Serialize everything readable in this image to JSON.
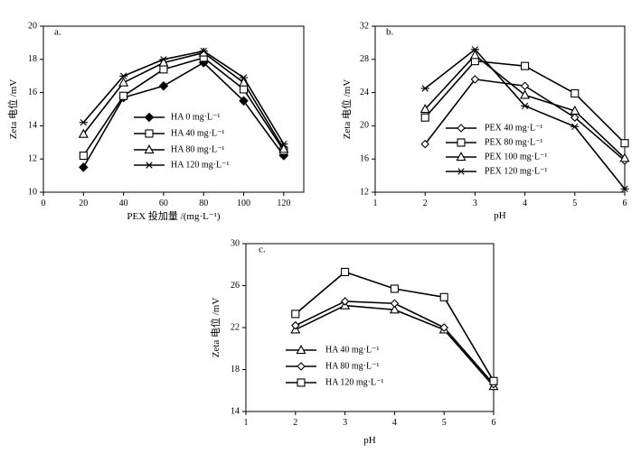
{
  "chart_data": [
    {
      "type": "line",
      "panel_label": "a.",
      "xlabel": "PEX 投加量 /(mg·L⁻¹)",
      "ylabel": "Zeta 电位 /mV",
      "xlim": [
        0,
        130
      ],
      "ylim": [
        10,
        20
      ],
      "xticks": [
        "0",
        "20",
        "40",
        "60",
        "80",
        "100",
        "120"
      ],
      "yticks": [
        "10",
        "12",
        "14",
        "16",
        "18",
        "20"
      ],
      "x": [
        20,
        40,
        60,
        80,
        100,
        120
      ],
      "legend_position": "center",
      "series": [
        {
          "name": "HA 0 mg·L⁻¹",
          "marker": "diamond-filled",
          "values": [
            11.5,
            15.7,
            16.4,
            17.8,
            15.5,
            12.2
          ]
        },
        {
          "name": "HA 40 mg·L⁻¹",
          "marker": "square",
          "values": [
            12.2,
            15.8,
            17.4,
            18.1,
            16.2,
            12.5
          ]
        },
        {
          "name": "HA 80 mg·L⁻¹",
          "marker": "triangle",
          "values": [
            13.5,
            16.6,
            17.8,
            18.4,
            16.6,
            12.6
          ]
        },
        {
          "name": "HA 120 mg·L⁻¹",
          "marker": "star",
          "values": [
            14.2,
            17.0,
            18.0,
            18.5,
            16.9,
            12.9
          ]
        }
      ]
    },
    {
      "type": "line",
      "panel_label": "b.",
      "xlabel": "pH",
      "ylabel": "Zeta 电位 /mV",
      "xlim": [
        1,
        6
      ],
      "ylim": [
        12,
        32
      ],
      "xticks": [
        "1",
        "2",
        "3",
        "4",
        "5",
        "6"
      ],
      "yticks": [
        "12",
        "16",
        "20",
        "24",
        "28",
        "32"
      ],
      "x": [
        2,
        3,
        4,
        5,
        6
      ],
      "legend_position": "bottom-left",
      "series": [
        {
          "name": "PEX 40 mg·L⁻¹",
          "marker": "diamond",
          "values": [
            17.8,
            25.6,
            24.8,
            21.0,
            15.8
          ]
        },
        {
          "name": "PEX 80 mg·L⁻¹",
          "marker": "square",
          "values": [
            21.0,
            27.8,
            27.2,
            23.9,
            17.9
          ]
        },
        {
          "name": "PEX 100 mg·L⁻¹",
          "marker": "triangle",
          "values": [
            22.0,
            28.5,
            23.7,
            21.8,
            16.1
          ]
        },
        {
          "name": "PEX 120 mg·L⁻¹",
          "marker": "star",
          "values": [
            24.5,
            29.2,
            22.4,
            19.9,
            12.4
          ]
        }
      ]
    },
    {
      "type": "line",
      "panel_label": "c.",
      "xlabel": "pH",
      "ylabel": "Zeta 电位 /mV",
      "xlim": [
        1,
        6
      ],
      "ylim": [
        14,
        30
      ],
      "xticks": [
        "1",
        "2",
        "3",
        "4",
        "5",
        "6"
      ],
      "yticks": [
        "14",
        "18",
        "22",
        "26",
        "30"
      ],
      "x": [
        2,
        3,
        4,
        5,
        6
      ],
      "legend_position": "bottom-left",
      "series": [
        {
          "name": "HA 40 mg·L⁻¹",
          "marker": "triangle",
          "values": [
            21.8,
            24.1,
            23.7,
            21.8,
            16.4
          ]
        },
        {
          "name": "HA 80 mg·L⁻¹",
          "marker": "diamond",
          "values": [
            22.2,
            24.5,
            24.3,
            22.0,
            16.6
          ]
        },
        {
          "name": "HA 120 mg·L⁻¹",
          "marker": "square",
          "values": [
            23.3,
            27.3,
            25.7,
            24.9,
            16.9
          ]
        }
      ]
    }
  ]
}
